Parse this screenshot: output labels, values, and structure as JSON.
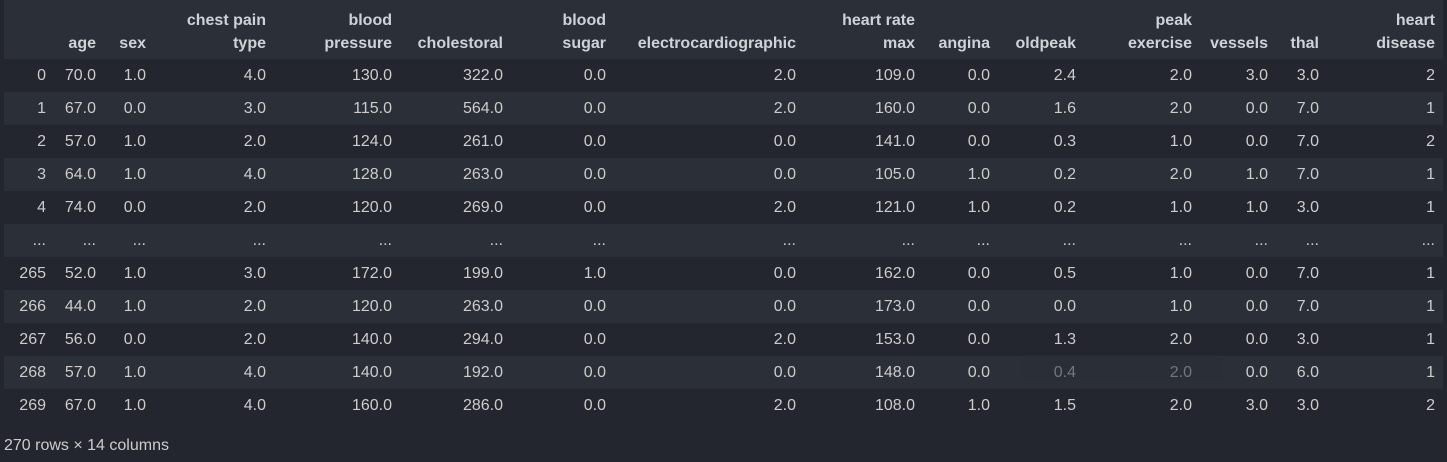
{
  "columns": [
    {
      "lines": [
        "age"
      ]
    },
    {
      "lines": [
        "sex"
      ]
    },
    {
      "lines": [
        "chest pain",
        "type"
      ]
    },
    {
      "lines": [
        "blood",
        "pressure"
      ]
    },
    {
      "lines": [
        "cholestoral"
      ]
    },
    {
      "lines": [
        "blood",
        "sugar"
      ]
    },
    {
      "lines": [
        "electrocardiographic"
      ]
    },
    {
      "lines": [
        "heart rate",
        "max"
      ]
    },
    {
      "lines": [
        "angina"
      ]
    },
    {
      "lines": [
        "oldpeak"
      ]
    },
    {
      "lines": [
        "peak",
        "exercise"
      ]
    },
    {
      "lines": [
        "vessels"
      ]
    },
    {
      "lines": [
        "thal"
      ]
    },
    {
      "lines": [
        "heart",
        "disease"
      ]
    }
  ],
  "rows": [
    {
      "index": "0",
      "cells": [
        "70.0",
        "1.0",
        "4.0",
        "130.0",
        "322.0",
        "0.0",
        "2.0",
        "109.0",
        "0.0",
        "2.4",
        "2.0",
        "3.0",
        "3.0",
        "2"
      ]
    },
    {
      "index": "1",
      "cells": [
        "67.0",
        "0.0",
        "3.0",
        "115.0",
        "564.0",
        "0.0",
        "2.0",
        "160.0",
        "0.0",
        "1.6",
        "2.0",
        "0.0",
        "7.0",
        "1"
      ]
    },
    {
      "index": "2",
      "cells": [
        "57.0",
        "1.0",
        "2.0",
        "124.0",
        "261.0",
        "0.0",
        "0.0",
        "141.0",
        "0.0",
        "0.3",
        "1.0",
        "0.0",
        "7.0",
        "2"
      ]
    },
    {
      "index": "3",
      "cells": [
        "64.0",
        "1.0",
        "4.0",
        "128.0",
        "263.0",
        "0.0",
        "0.0",
        "105.0",
        "1.0",
        "0.2",
        "2.0",
        "1.0",
        "7.0",
        "1"
      ]
    },
    {
      "index": "4",
      "cells": [
        "74.0",
        "0.0",
        "2.0",
        "120.0",
        "269.0",
        "0.0",
        "2.0",
        "121.0",
        "1.0",
        "0.2",
        "1.0",
        "1.0",
        "3.0",
        "1"
      ]
    },
    {
      "index": "...",
      "cells": [
        "...",
        "...",
        "...",
        "...",
        "...",
        "...",
        "...",
        "...",
        "...",
        "...",
        "...",
        "...",
        "...",
        "..."
      ]
    },
    {
      "index": "265",
      "cells": [
        "52.0",
        "1.0",
        "3.0",
        "172.0",
        "199.0",
        "1.0",
        "0.0",
        "162.0",
        "0.0",
        "0.5",
        "1.0",
        "0.0",
        "7.0",
        "1"
      ]
    },
    {
      "index": "266",
      "cells": [
        "44.0",
        "1.0",
        "2.0",
        "120.0",
        "263.0",
        "0.0",
        "0.0",
        "173.0",
        "0.0",
        "0.0",
        "1.0",
        "0.0",
        "7.0",
        "1"
      ]
    },
    {
      "index": "267",
      "cells": [
        "56.0",
        "0.0",
        "2.0",
        "140.0",
        "294.0",
        "0.0",
        "2.0",
        "153.0",
        "0.0",
        "1.3",
        "2.0",
        "0.0",
        "3.0",
        "1"
      ]
    },
    {
      "index": "268",
      "cells": [
        "57.0",
        "1.0",
        "4.0",
        "140.0",
        "192.0",
        "0.0",
        "0.0",
        "148.0",
        "0.0",
        "0.4",
        "2.0",
        "0.0",
        "6.0",
        "1"
      ]
    },
    {
      "index": "269",
      "cells": [
        "67.0",
        "1.0",
        "4.0",
        "160.0",
        "286.0",
        "0.0",
        "2.0",
        "108.0",
        "1.0",
        "1.5",
        "2.0",
        "3.0",
        "3.0",
        "2"
      ]
    }
  ],
  "footer": "270 rows × 14 columns"
}
